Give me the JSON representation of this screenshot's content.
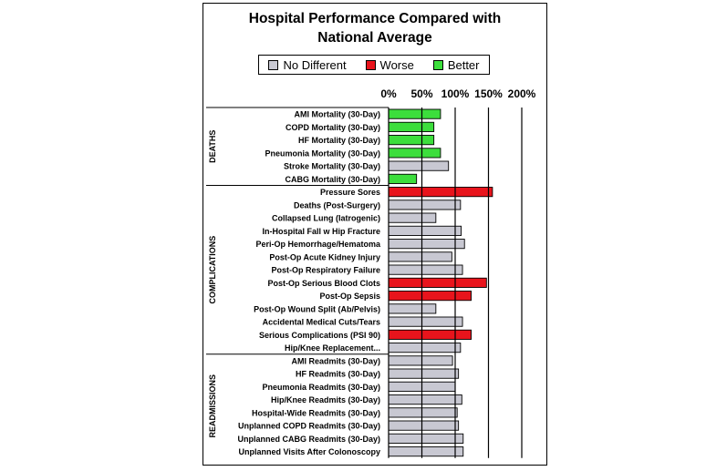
{
  "title_line1": "Hospital Performance Compared with",
  "title_line2": "National Average",
  "legend": [
    {
      "label": "No Different",
      "color": "#c8c8d2"
    },
    {
      "label": "Worse",
      "color": "#e8141c"
    },
    {
      "label": "Better",
      "color": "#3cde3c"
    }
  ],
  "chart_data": {
    "type": "bar",
    "orientation": "horizontal",
    "xlim": [
      0,
      200
    ],
    "x_ticks": [
      "0%",
      "50%",
      "100%",
      "150%",
      "200%"
    ],
    "gridlines_at": [
      50,
      100,
      150,
      200
    ],
    "groups": [
      {
        "name": "DEATHS",
        "rows": [
          {
            "label": "AMI Mortality (30-Day)",
            "value": 78,
            "status": "better"
          },
          {
            "label": "COPD Mortality (30-Day)",
            "value": 68,
            "status": "better"
          },
          {
            "label": "HF Mortality (30-Day)",
            "value": 68,
            "status": "better"
          },
          {
            "label": "Pneumonia Mortality (30-Day)",
            "value": 78,
            "status": "better"
          },
          {
            "label": "Stroke Mortality (30-Day)",
            "value": 90,
            "status": "no_different"
          },
          {
            "label": "CABG Mortality (30-Day)",
            "value": 42,
            "status": "better"
          }
        ]
      },
      {
        "name": "COMPLICATIONS",
        "rows": [
          {
            "label": "Pressure Sores",
            "value": 156,
            "status": "worse"
          },
          {
            "label": "Deaths (Post-Surgery)",
            "value": 108,
            "status": "no_different"
          },
          {
            "label": "Collapsed Lung (Iatrogenic)",
            "value": 71,
            "status": "no_different"
          },
          {
            "label": "In-Hospital Fall w Hip Fracture",
            "value": 109,
            "status": "no_different"
          },
          {
            "label": "Peri-Op Hemorrhage/Hematoma",
            "value": 114,
            "status": "no_different"
          },
          {
            "label": "Post-Op Acute Kidney Injury",
            "value": 95,
            "status": "no_different"
          },
          {
            "label": "Post-Op Respiratory Failure",
            "value": 111,
            "status": "no_different"
          },
          {
            "label": "Post-Op Serious Blood Clots",
            "value": 147,
            "status": "worse"
          },
          {
            "label": "Post-Op Sepsis",
            "value": 124,
            "status": "worse"
          },
          {
            "label": "Post-Op Wound Split (Ab/Pelvis)",
            "value": 71,
            "status": "no_different"
          },
          {
            "label": "Accidental Medical Cuts/Tears",
            "value": 111,
            "status": "no_different"
          },
          {
            "label": "Serious Complications (PSI 90)",
            "value": 124,
            "status": "worse"
          },
          {
            "label": "Hip/Knee Replacement...",
            "value": 108,
            "status": "no_different"
          }
        ]
      },
      {
        "name": "READMISSIONS",
        "rows": [
          {
            "label": "AMI Readmits (30-Day)",
            "value": 96,
            "status": "no_different"
          },
          {
            "label": "HF Readmits (30-Day)",
            "value": 105,
            "status": "no_different"
          },
          {
            "label": "Pneumonia Readmits (30-Day)",
            "value": 100,
            "status": "no_different"
          },
          {
            "label": "Hip/Knee Readmits (30-Day)",
            "value": 110,
            "status": "no_different"
          },
          {
            "label": "Hospital-Wide Readmits (30-Day)",
            "value": 103,
            "status": "no_different"
          },
          {
            "label": "Unplanned COPD Readmits (30-Day)",
            "value": 105,
            "status": "no_different"
          },
          {
            "label": "Unplanned CABG Readmits (30-Day)",
            "value": 112,
            "status": "no_different"
          },
          {
            "label": "Unplanned Visits After Colonoscopy",
            "value": 112,
            "status": "no_different"
          }
        ]
      }
    ]
  }
}
